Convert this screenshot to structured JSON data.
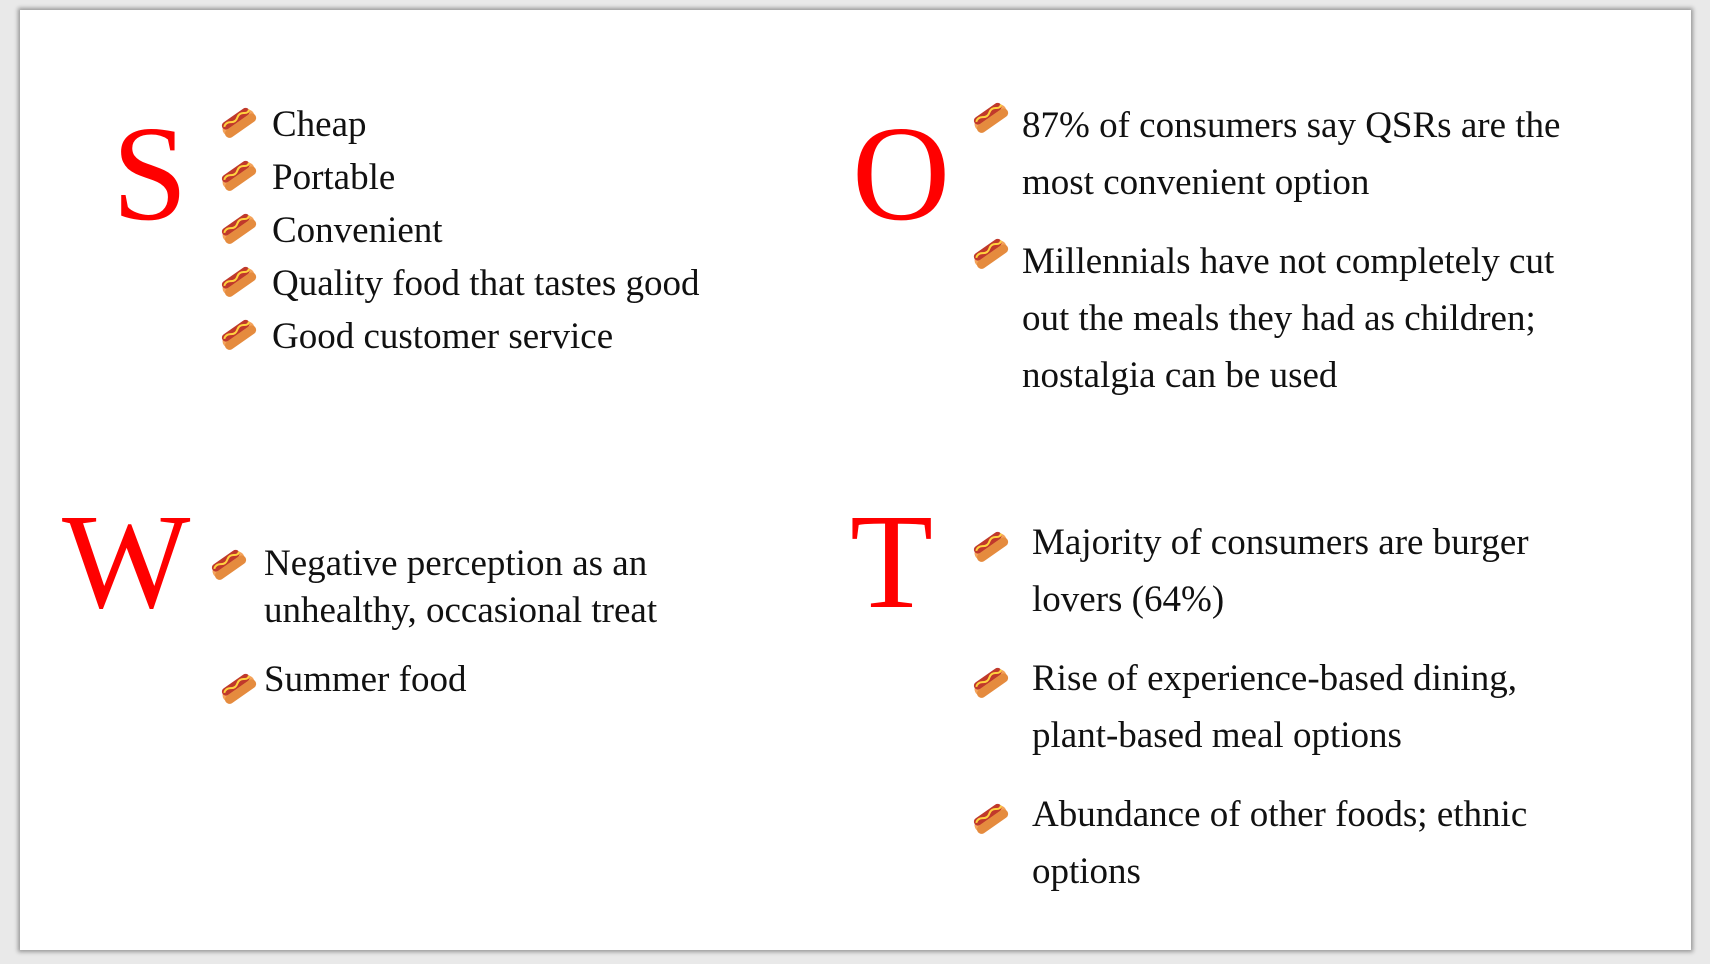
{
  "swot": {
    "strengths": {
      "letter": "S",
      "items": [
        "Cheap",
        "Portable",
        "Convenient",
        "Quality food that tastes good",
        "Good customer service"
      ]
    },
    "weaknesses": {
      "letter": "W",
      "items": [
        "Negative perception as an unhealthy, occasional treat",
        "Summer food"
      ]
    },
    "opportunities": {
      "letter": "O",
      "items": [
        "87% of consumers say QSRs are the most convenient option",
        "Millennials have not completely cut out the meals they had as children; nostalgia can be used"
      ]
    },
    "threats": {
      "letter": "T",
      "items": [
        "Majority of consumers are burger lovers (64%)",
        "Rise of experience-based dining, plant-based meal options",
        "Abundance of other foods; ethnic options"
      ]
    }
  },
  "colors": {
    "letter": "#ff0000",
    "text": "#111111",
    "background": "#ffffff"
  },
  "bullet_icon": "hot-dog-icon"
}
